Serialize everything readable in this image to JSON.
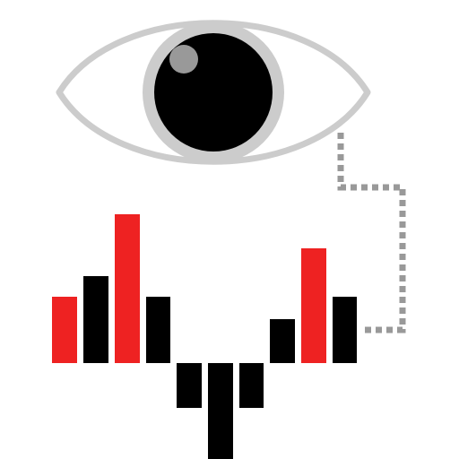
{
  "colors": {
    "background": "#ffffff",
    "eye_outline": "#cccccc",
    "iris_ring": "#cccccc",
    "pupil": "#000000",
    "highlight": "#999999",
    "connector": "#999999",
    "bar_dark": "#000000",
    "bar_accent": "#ee2222"
  },
  "icons": {
    "eye": "eye-icon",
    "chart": "waveform-bars-icon",
    "connector": "dotted-connector-line"
  }
}
